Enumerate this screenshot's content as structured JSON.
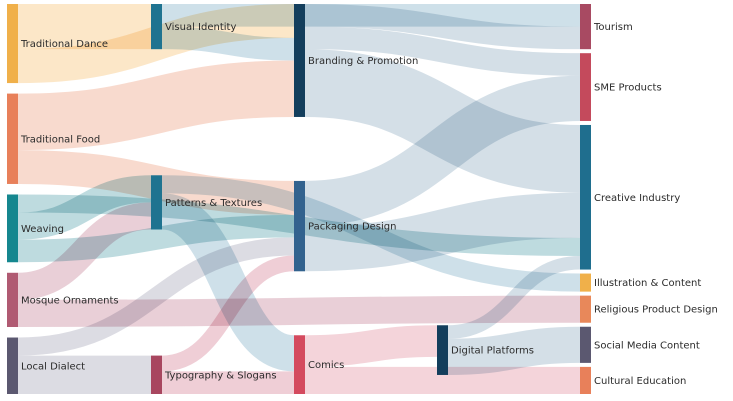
{
  "chart_data": {
    "type": "sankey",
    "title": "",
    "nodes": [
      {
        "id": "td",
        "label": "Traditional Dance",
        "color": "#f0b04a",
        "column": 0
      },
      {
        "id": "tf",
        "label": "Traditional Food",
        "color": "#e8805a",
        "column": 0
      },
      {
        "id": "wv",
        "label": "Weaving",
        "color": "#15878f",
        "column": 0
      },
      {
        "id": "mo",
        "label": "Mosque Ornaments",
        "color": "#b05a72",
        "column": 0
      },
      {
        "id": "ld",
        "label": "Local Dialect",
        "color": "#5b5870",
        "column": 0
      },
      {
        "id": "vi",
        "label": "Visual Identity",
        "color": "#1f7390",
        "column": 1
      },
      {
        "id": "pt",
        "label": "Patterns & Textures",
        "color": "#1f7390",
        "column": 1
      },
      {
        "id": "ts",
        "label": "Typography & Slogans",
        "color": "#a8465f",
        "column": 1
      },
      {
        "id": "bp",
        "label": "Branding & Promotion",
        "color": "#133e5c",
        "column": 2
      },
      {
        "id": "pd",
        "label": "Packaging Design",
        "color": "#32628e",
        "column": 2
      },
      {
        "id": "cm",
        "label": "Comics",
        "color": "#d44a5e",
        "column": 2
      },
      {
        "id": "dp",
        "label": "Digital Platforms",
        "color": "#133e5c",
        "column": 3
      },
      {
        "id": "tr",
        "label": "Tourism",
        "color": "#a84a62",
        "column": 4
      },
      {
        "id": "sme",
        "label": "SME Products",
        "color": "#c44a5c",
        "column": 4
      },
      {
        "id": "ci",
        "label": "Creative Industry",
        "color": "#1f6e8e",
        "column": 4
      },
      {
        "id": "ic",
        "label": "Illustration & Content",
        "color": "#f0b04a",
        "column": 4
      },
      {
        "id": "rp",
        "label": "Religious Product Design",
        "color": "#e8885a",
        "column": 4
      },
      {
        "id": "sm",
        "label": "Social Media Content",
        "color": "#5b5870",
        "column": 4
      },
      {
        "id": "ce",
        "label": "Cultural Education",
        "color": "#e8805a",
        "column": 4
      }
    ],
    "links": [
      {
        "source": "td",
        "target": "vi",
        "value": 20,
        "color": "#fbe3be"
      },
      {
        "source": "td",
        "target": "bp",
        "value": 15,
        "color": "#fbe3be"
      },
      {
        "source": "tf",
        "target": "bp",
        "value": 25,
        "color": "#f7d4c6"
      },
      {
        "source": "tf",
        "target": "pd",
        "value": 15,
        "color": "#f7d4c6"
      },
      {
        "source": "wv",
        "target": "pt",
        "value": 12,
        "color": "#b3d5d9"
      },
      {
        "source": "wv",
        "target": "pd",
        "value": 10,
        "color": "#b3d5d9"
      },
      {
        "source": "wv",
        "target": "ci",
        "value": 8,
        "color": "#b3d5d9"
      },
      {
        "source": "mo",
        "target": "pt",
        "value": 12,
        "color": "#e5c7d0"
      },
      {
        "source": "mo",
        "target": "rp",
        "value": 12,
        "color": "#e5c7d0"
      },
      {
        "source": "ld",
        "target": "ts",
        "value": 17,
        "color": "#d6d6de"
      },
      {
        "source": "ld",
        "target": "pd",
        "value": 8,
        "color": "#d6d6de"
      },
      {
        "source": "vi",
        "target": "tr",
        "value": 10,
        "color": "#c6dbe5"
      },
      {
        "source": "vi",
        "target": "bp",
        "value": 10,
        "color": "#c6dbe5"
      },
      {
        "source": "pt",
        "target": "ic",
        "value": 8,
        "color": "#c6dbe5"
      },
      {
        "source": "pt",
        "target": "cm",
        "value": 16,
        "color": "#c6dbe5"
      },
      {
        "source": "ts",
        "target": "pd",
        "value": 7,
        "color": "#ecc5cf"
      },
      {
        "source": "ts",
        "target": "cm",
        "value": 10,
        "color": "#ecc5cf"
      },
      {
        "source": "bp",
        "target": "tr",
        "value": 10,
        "color": "#ccd9e3"
      },
      {
        "source": "bp",
        "target": "sme",
        "value": 10,
        "color": "#ccd9e3"
      },
      {
        "source": "bp",
        "target": "ci",
        "value": 30,
        "color": "#ccd9e3"
      },
      {
        "source": "pd",
        "target": "sme",
        "value": 20,
        "color": "#ccd9e3"
      },
      {
        "source": "pd",
        "target": "ci",
        "value": 20,
        "color": "#ccd9e3"
      },
      {
        "source": "cm",
        "target": "dp",
        "value": 14,
        "color": "#f2cdd4"
      },
      {
        "source": "cm",
        "target": "ce",
        "value": 12,
        "color": "#f2cdd4"
      },
      {
        "source": "dp",
        "target": "ci",
        "value": 6,
        "color": "#ccd9e3"
      },
      {
        "source": "dp",
        "target": "sm",
        "value": 16,
        "color": "#ccd9e3"
      }
    ]
  }
}
